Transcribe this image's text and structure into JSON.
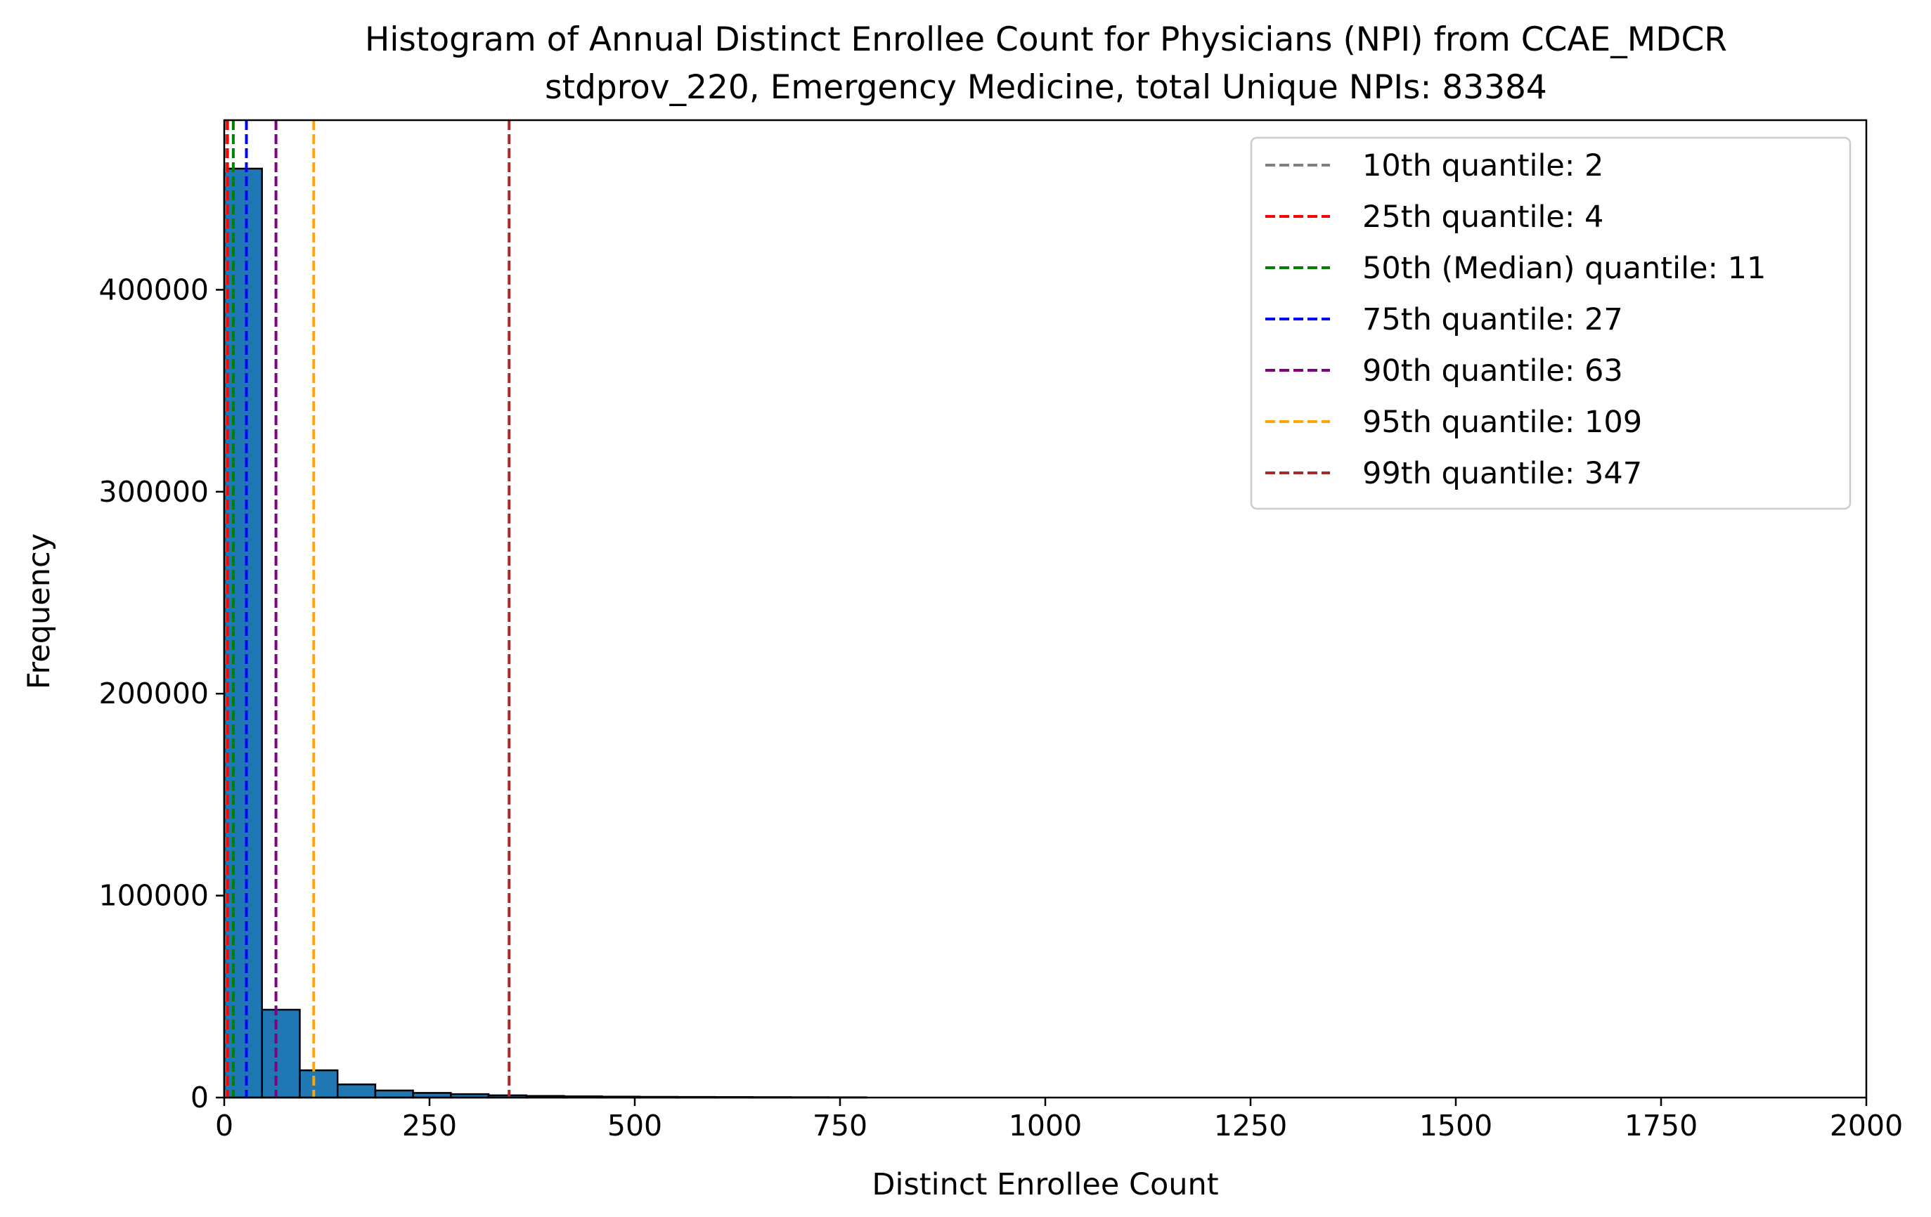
{
  "chart_data": {
    "type": "bar",
    "title": "Histogram of Annual Distinct Enrollee Count for Physicians (NPI) from CCAE_MDCR",
    "subtitle": "stdprov_220, Emergency Medicine, total Unique NPIs: 83384",
    "xlabel": "Distinct Enrollee Count",
    "ylabel": "Frequency",
    "xlim": [
      0,
      2000
    ],
    "ylim": [
      0,
      484000
    ],
    "xticks": [
      0,
      250,
      500,
      750,
      1000,
      1250,
      1500,
      1750,
      2000
    ],
    "yticks": [
      0,
      100000,
      200000,
      300000,
      400000
    ],
    "grid": false,
    "legend_position": "top-right",
    "bin_width": 46,
    "bins": [
      {
        "x0": 0,
        "x1": 46,
        "count": 460000
      },
      {
        "x0": 46,
        "x1": 92,
        "count": 43500
      },
      {
        "x0": 92,
        "x1": 138,
        "count": 13500
      },
      {
        "x0": 138,
        "x1": 184,
        "count": 6500
      },
      {
        "x0": 184,
        "x1": 230,
        "count": 3500
      },
      {
        "x0": 230,
        "x1": 276,
        "count": 2300
      },
      {
        "x0": 276,
        "x1": 322,
        "count": 1700
      },
      {
        "x0": 322,
        "x1": 368,
        "count": 1100
      },
      {
        "x0": 368,
        "x1": 414,
        "count": 800
      },
      {
        "x0": 414,
        "x1": 460,
        "count": 600
      },
      {
        "x0": 460,
        "x1": 506,
        "count": 450
      },
      {
        "x0": 506,
        "x1": 552,
        "count": 350
      },
      {
        "x0": 552,
        "x1": 598,
        "count": 300
      },
      {
        "x0": 598,
        "x1": 644,
        "count": 250
      },
      {
        "x0": 644,
        "x1": 690,
        "count": 200
      },
      {
        "x0": 690,
        "x1": 736,
        "count": 150
      },
      {
        "x0": 736,
        "x1": 782,
        "count": 120
      }
    ],
    "bar_color": "#1f77b4",
    "bar_edge_color": "#000000",
    "quantile_lines": [
      {
        "label": "10th quantile: 2",
        "value": 2,
        "color": "#808080"
      },
      {
        "label": "25th quantile: 4",
        "value": 4,
        "color": "#ff0000"
      },
      {
        "label": "50th (Median) quantile: 11",
        "value": 11,
        "color": "#008000"
      },
      {
        "label": "75th quantile: 27",
        "value": 27,
        "color": "#0000ff"
      },
      {
        "label": "90th quantile: 63",
        "value": 63,
        "color": "#800080"
      },
      {
        "label": "95th quantile: 109",
        "value": 109,
        "color": "#ffa500"
      },
      {
        "label": "99th quantile: 347",
        "value": 347,
        "color": "#a52a2a"
      }
    ]
  }
}
